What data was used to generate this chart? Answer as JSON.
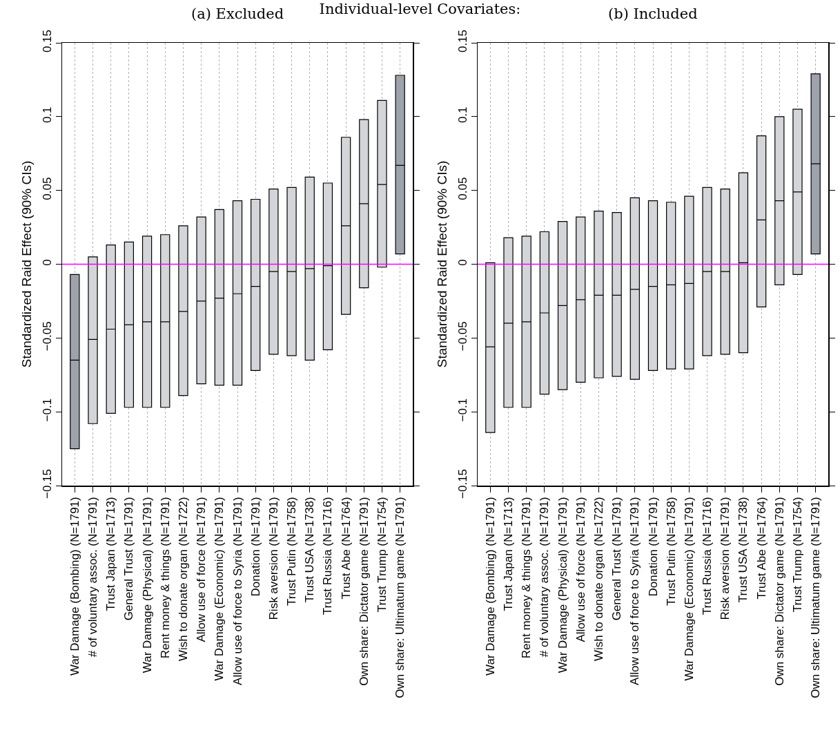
{
  "chart_data": [
    {
      "type": "box",
      "title": "Individual-level Covariates:",
      "subtitle": "(a) Excluded",
      "ylabel": "Standardized Raid Effect (90% CIs)",
      "categories": [
        "War Damage (Bombing) (N=1791)",
        "# of voluntary assoc. (N=1791)",
        "Trust Japan (N=1713)",
        "General Trust (N=1791)",
        "War Damage (Physical) (N=1791)",
        "Rent money & things (N=1791)",
        "Wish to donate organ (N=1722)",
        "Allow use of force (N=1791)",
        "War Damage (Economic) (N=1791)",
        "Allow use of force to Syria (N=1791)",
        "Donation (N=1791)",
        "Risk aversion (N=1791)",
        "Trust Putin (N=1758)",
        "Trust USA (N=1738)",
        "Trust Russia (N=1716)",
        "Trust Abe (N=1764)",
        "Own share: Dictator game (N=1791)",
        "Trust Trump (N=1754)",
        "Own share: Ultimatum game (N=1791)"
      ],
      "boxes": [
        {
          "low": -0.125,
          "q1": -0.125,
          "median": -0.065,
          "q3": -0.007,
          "high": -0.007
        },
        {
          "low": -0.108,
          "q1": -0.108,
          "median": -0.051,
          "q3": 0.005,
          "high": 0.005
        },
        {
          "low": -0.101,
          "q1": -0.101,
          "median": -0.044,
          "q3": 0.013,
          "high": 0.013
        },
        {
          "low": -0.097,
          "q1": -0.097,
          "median": -0.041,
          "q3": 0.015,
          "high": 0.015
        },
        {
          "low": -0.097,
          "q1": -0.097,
          "median": -0.039,
          "q3": 0.019,
          "high": 0.019
        },
        {
          "low": -0.097,
          "q1": -0.097,
          "median": -0.039,
          "q3": 0.02,
          "high": 0.02
        },
        {
          "low": -0.089,
          "q1": -0.089,
          "median": -0.032,
          "q3": 0.026,
          "high": 0.026
        },
        {
          "low": -0.081,
          "q1": -0.081,
          "median": -0.025,
          "q3": 0.032,
          "high": 0.032
        },
        {
          "low": -0.082,
          "q1": -0.082,
          "median": -0.023,
          "q3": 0.037,
          "high": 0.037
        },
        {
          "low": -0.082,
          "q1": -0.082,
          "median": -0.02,
          "q3": 0.043,
          "high": 0.043
        },
        {
          "low": -0.072,
          "q1": -0.072,
          "median": -0.015,
          "q3": 0.044,
          "high": 0.044
        },
        {
          "low": -0.061,
          "q1": -0.061,
          "median": -0.005,
          "q3": 0.051,
          "high": 0.051
        },
        {
          "low": -0.062,
          "q1": -0.062,
          "median": -0.005,
          "q3": 0.052,
          "high": 0.052
        },
        {
          "low": -0.065,
          "q1": -0.065,
          "median": -0.003,
          "q3": 0.059,
          "high": 0.059
        },
        {
          "low": -0.058,
          "q1": -0.058,
          "median": -0.001,
          "q3": 0.055,
          "high": 0.055
        },
        {
          "low": -0.034,
          "q1": -0.034,
          "median": 0.026,
          "q3": 0.086,
          "high": 0.086
        },
        {
          "low": -0.016,
          "q1": -0.016,
          "median": 0.041,
          "q3": 0.098,
          "high": 0.098
        },
        {
          "low": -0.002,
          "q1": -0.002,
          "median": 0.054,
          "q3": 0.111,
          "high": 0.111
        },
        {
          "low": 0.007,
          "q1": 0.007,
          "median": 0.067,
          "q3": 0.128,
          "high": 0.128
        }
      ],
      "colors": [
        "#9ea3ab",
        "#d3d5d8",
        "#d3d5d8",
        "#d3d5d8",
        "#d3d5d8",
        "#d3d5d8",
        "#d3d5d8",
        "#d3d5d8",
        "#d3d5d8",
        "#d3d5d8",
        "#d3d5d8",
        "#d3d5d8",
        "#d3d5d8",
        "#d3d5d8",
        "#d3d5d8",
        "#d3d5d8",
        "#d3d5d8",
        "#d3d5d8",
        "#9ea3ab"
      ],
      "ylim": [
        -0.15,
        0.15
      ],
      "yticks": [
        {
          "value": -0.15,
          "label": "−0.15"
        },
        {
          "value": -0.1,
          "label": "−0.1"
        },
        {
          "value": -0.05,
          "label": "−0.05"
        },
        0,
        0.05,
        0.1,
        0.15
      ],
      "ref_lines": [
        {
          "axis": "y",
          "value": 0,
          "color": "#ff00ff"
        }
      ],
      "grid": "x"
    },
    {
      "type": "box",
      "title": "(b) Included",
      "ylabel": "Standardized Raid Effect (90% CIs)",
      "categories": [
        "War Damage (Bombing) (N=1791)",
        "Trust Japan (N=1713)",
        "Rent money & things (N=1791)",
        "# of voluntary assoc. (N=1791)",
        "War Damage (Physical) (N=1791)",
        "Allow use of force (N=1791)",
        "Wish to donate organ (N=1722)",
        "General Trust (N=1791)",
        "Allow use of force to Syria (N=1791)",
        "Donation (N=1791)",
        "Trust Putin (N=1758)",
        "War Damage (Economic) (N=1791)",
        "Trust Russia (N=1716)",
        "Risk aversion (N=1791)",
        "Trust USA (N=1738)",
        "Trust Abe (N=1764)",
        "Own share: Dictator game (N=1791)",
        "Trust Trump (N=1754)",
        "Own share: Ultimatum game (N=1791)"
      ],
      "boxes": [
        {
          "low": -0.114,
          "q1": -0.114,
          "median": -0.056,
          "q3": 0.001,
          "high": 0.001
        },
        {
          "low": -0.097,
          "q1": -0.097,
          "median": -0.04,
          "q3": 0.018,
          "high": 0.018
        },
        {
          "low": -0.097,
          "q1": -0.097,
          "median": -0.039,
          "q3": 0.019,
          "high": 0.019
        },
        {
          "low": -0.088,
          "q1": -0.088,
          "median": -0.033,
          "q3": 0.022,
          "high": 0.022
        },
        {
          "low": -0.085,
          "q1": -0.085,
          "median": -0.028,
          "q3": 0.029,
          "high": 0.029
        },
        {
          "low": -0.08,
          "q1": -0.08,
          "median": -0.024,
          "q3": 0.032,
          "high": 0.032
        },
        {
          "low": -0.077,
          "q1": -0.077,
          "median": -0.021,
          "q3": 0.036,
          "high": 0.036
        },
        {
          "low": -0.076,
          "q1": -0.076,
          "median": -0.021,
          "q3": 0.035,
          "high": 0.035
        },
        {
          "low": -0.078,
          "q1": -0.078,
          "median": -0.017,
          "q3": 0.045,
          "high": 0.045
        },
        {
          "low": -0.072,
          "q1": -0.072,
          "median": -0.015,
          "q3": 0.043,
          "high": 0.043
        },
        {
          "low": -0.071,
          "q1": -0.071,
          "median": -0.014,
          "q3": 0.042,
          "high": 0.042
        },
        {
          "low": -0.071,
          "q1": -0.071,
          "median": -0.013,
          "q3": 0.046,
          "high": 0.046
        },
        {
          "low": -0.062,
          "q1": -0.062,
          "median": -0.005,
          "q3": 0.052,
          "high": 0.052
        },
        {
          "low": -0.061,
          "q1": -0.061,
          "median": -0.005,
          "q3": 0.051,
          "high": 0.051
        },
        {
          "low": -0.06,
          "q1": -0.06,
          "median": 0.001,
          "q3": 0.062,
          "high": 0.062
        },
        {
          "low": -0.029,
          "q1": -0.029,
          "median": 0.03,
          "q3": 0.087,
          "high": 0.087
        },
        {
          "low": -0.014,
          "q1": -0.014,
          "median": 0.043,
          "q3": 0.1,
          "high": 0.1
        },
        {
          "low": -0.007,
          "q1": -0.007,
          "median": 0.049,
          "q3": 0.105,
          "high": 0.105
        },
        {
          "low": 0.007,
          "q1": 0.007,
          "median": 0.068,
          "q3": 0.129,
          "high": 0.129
        }
      ],
      "colors": [
        "#d3d5d8",
        "#d3d5d8",
        "#d3d5d8",
        "#d3d5d8",
        "#d3d5d8",
        "#d3d5d8",
        "#d3d5d8",
        "#d3d5d8",
        "#d3d5d8",
        "#d3d5d8",
        "#d3d5d8",
        "#d3d5d8",
        "#d3d5d8",
        "#d3d5d8",
        "#d3d5d8",
        "#d3d5d8",
        "#d3d5d8",
        "#d3d5d8",
        "#9ea3ab"
      ],
      "ylim": [
        -0.15,
        0.15
      ],
      "yticks": [
        {
          "value": -0.15,
          "label": "−0.15"
        },
        {
          "value": -0.1,
          "label": "−0.1"
        },
        {
          "value": -0.05,
          "label": "−0.05"
        },
        0,
        0.05,
        0.1,
        0.15
      ],
      "ref_lines": [
        {
          "axis": "y",
          "value": 0,
          "color": "#ff00ff"
        }
      ],
      "grid": "x"
    }
  ]
}
